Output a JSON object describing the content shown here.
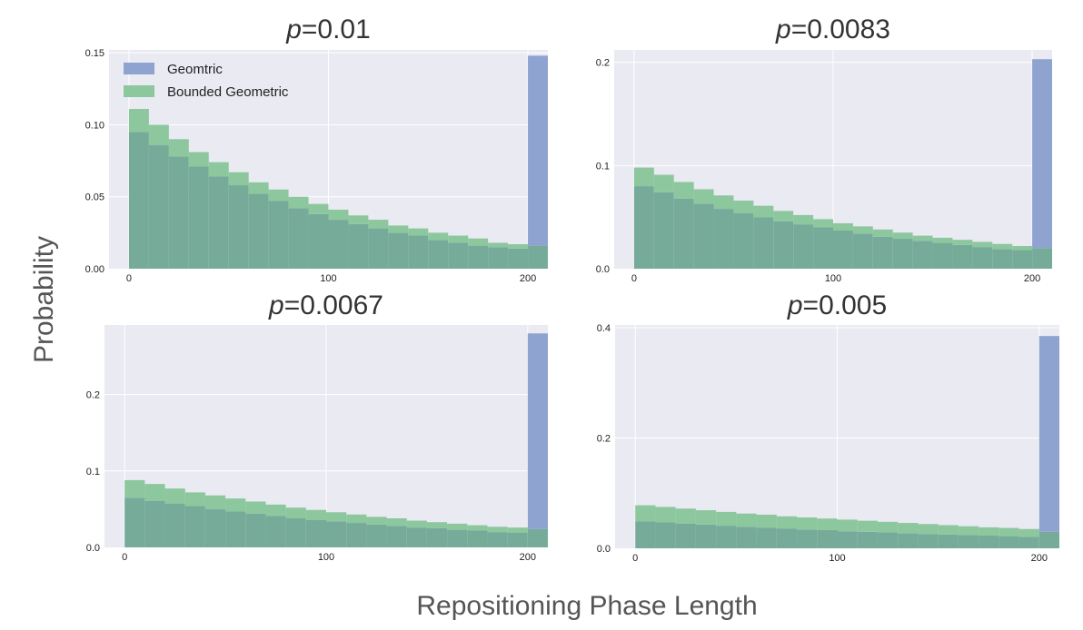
{
  "figure": {
    "ylabel": "Probability",
    "xlabel": "Repositioning Phase Length",
    "legend": [
      "Geomtric",
      "Bounded Geometric"
    ]
  },
  "colors": {
    "geometric": "#8ea3cf",
    "bounded": "#8cc79e",
    "overlap": "#76ab9a",
    "axes_bg": "#eaeaf2",
    "grid": "#ffffff"
  },
  "chart_data": [
    {
      "type": "bar",
      "title_italic": "p",
      "title_value": "=0.01",
      "xlim": [
        -10,
        210
      ],
      "ylim": [
        0,
        0.152
      ],
      "xticks": [
        0,
        100,
        200
      ],
      "xtick_labels": [
        "0",
        "100",
        "200"
      ],
      "yticks": [
        0,
        0.05,
        0.1,
        0.15
      ],
      "ytick_labels": [
        "0.00",
        "0.05",
        "0.10",
        "0.15"
      ],
      "bin_width": 10,
      "series": [
        {
          "name": "Geomtric",
          "values": [
            0.095,
            0.086,
            0.078,
            0.071,
            0.064,
            0.058,
            0.052,
            0.047,
            0.042,
            0.038,
            0.034,
            0.031,
            0.028,
            0.025,
            0.023,
            0.02,
            0.018,
            0.016,
            0.015,
            0.014,
            0.148
          ]
        },
        {
          "name": "Bounded Geometric",
          "values": [
            0.111,
            0.1,
            0.09,
            0.081,
            0.074,
            0.067,
            0.06,
            0.055,
            0.05,
            0.045,
            0.041,
            0.037,
            0.034,
            0.03,
            0.028,
            0.025,
            0.023,
            0.021,
            0.018,
            0.017,
            0.016
          ]
        }
      ]
    },
    {
      "type": "bar",
      "title_italic": "p",
      "title_value": "=0.0083",
      "xlim": [
        -10,
        210
      ],
      "ylim": [
        0,
        0.212
      ],
      "xticks": [
        0,
        100,
        200
      ],
      "xtick_labels": [
        "0",
        "100",
        "200"
      ],
      "yticks": [
        0,
        0.1,
        0.2
      ],
      "ytick_labels": [
        "0.0",
        "0.1",
        "0.2"
      ],
      "bin_width": 10,
      "series": [
        {
          "name": "Geomtric",
          "values": [
            0.08,
            0.074,
            0.068,
            0.063,
            0.058,
            0.054,
            0.05,
            0.046,
            0.043,
            0.04,
            0.037,
            0.034,
            0.031,
            0.029,
            0.027,
            0.025,
            0.023,
            0.021,
            0.019,
            0.018,
            0.203
          ]
        },
        {
          "name": "Bounded Geometric",
          "values": [
            0.098,
            0.091,
            0.084,
            0.077,
            0.071,
            0.066,
            0.061,
            0.056,
            0.052,
            0.048,
            0.044,
            0.041,
            0.038,
            0.035,
            0.032,
            0.03,
            0.028,
            0.026,
            0.024,
            0.022,
            0.02
          ]
        }
      ]
    },
    {
      "type": "bar",
      "title_italic": "p",
      "title_value": "=0.0067",
      "xlim": [
        -10,
        210
      ],
      "ylim": [
        0,
        0.291
      ],
      "xticks": [
        0,
        100,
        200
      ],
      "xtick_labels": [
        "0",
        "100",
        "200"
      ],
      "yticks": [
        0,
        0.1,
        0.2
      ],
      "ytick_labels": [
        "0.0",
        "0.1",
        "0.2"
      ],
      "bin_width": 10,
      "series": [
        {
          "name": "Geomtric",
          "values": [
            0.065,
            0.061,
            0.057,
            0.054,
            0.05,
            0.047,
            0.044,
            0.041,
            0.038,
            0.036,
            0.034,
            0.032,
            0.03,
            0.028,
            0.026,
            0.025,
            0.023,
            0.022,
            0.02,
            0.019,
            0.28
          ]
        },
        {
          "name": "Bounded Geometric",
          "values": [
            0.088,
            0.083,
            0.077,
            0.072,
            0.068,
            0.064,
            0.06,
            0.056,
            0.052,
            0.049,
            0.046,
            0.043,
            0.04,
            0.038,
            0.035,
            0.033,
            0.031,
            0.029,
            0.027,
            0.026,
            0.024
          ]
        }
      ]
    },
    {
      "type": "bar",
      "title_italic": "p",
      "title_value": "=0.005",
      "xlim": [
        -10,
        210
      ],
      "ylim": [
        0,
        0.405
      ],
      "xticks": [
        0,
        100,
        200
      ],
      "xtick_labels": [
        "0",
        "100",
        "200"
      ],
      "yticks": [
        0,
        0.2,
        0.4
      ],
      "ytick_labels": [
        "0.0",
        "0.2",
        "0.4"
      ],
      "bin_width": 10,
      "series": [
        {
          "name": "Geomtric",
          "values": [
            0.049,
            0.047,
            0.045,
            0.043,
            0.041,
            0.039,
            0.037,
            0.036,
            0.034,
            0.033,
            0.031,
            0.03,
            0.029,
            0.027,
            0.026,
            0.025,
            0.024,
            0.023,
            0.022,
            0.021,
            0.385
          ]
        },
        {
          "name": "Bounded Geometric",
          "values": [
            0.078,
            0.075,
            0.072,
            0.069,
            0.066,
            0.063,
            0.061,
            0.058,
            0.056,
            0.054,
            0.052,
            0.05,
            0.048,
            0.046,
            0.044,
            0.042,
            0.04,
            0.038,
            0.037,
            0.035,
            0.03
          ]
        }
      ]
    }
  ]
}
